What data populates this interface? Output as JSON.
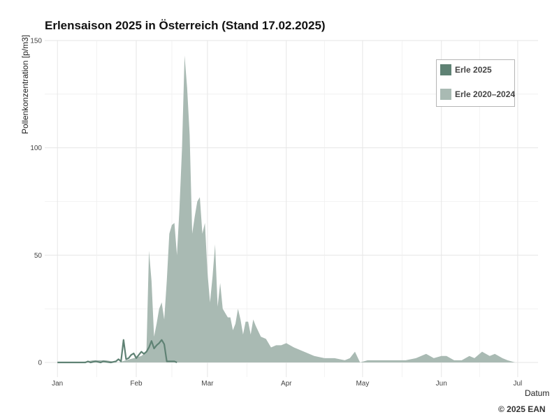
{
  "title": "Erlensaison 2025 in Österreich (Stand 17.02.2025)",
  "copyright": "© 2025 EAN",
  "colors": {
    "erle2025": "#5f8274",
    "erle2020_2024": "#a9bab3",
    "grid": "#e6e6e6"
  },
  "chart_data": {
    "type": "area",
    "title": "Erlensaison 2025 in Österreich (Stand 17.02.2025)",
    "xlabel": "Datum",
    "ylabel": "Pollenkonzentration [p/m3]",
    "ylim": [
      0,
      150
    ],
    "yticks": [
      0,
      50,
      100,
      150
    ],
    "xticks": [
      "Jan",
      "Feb",
      "Mar",
      "Apr",
      "May",
      "Jun",
      "Jul"
    ],
    "xtick_dates": [
      "2025-01-01",
      "2025-02-01",
      "2025-03-01",
      "2025-04-01",
      "2025-05-01",
      "2025-06-01",
      "2025-07-01"
    ],
    "xlim": [
      "2024-12-27",
      "2025-07-09"
    ],
    "grid": true,
    "legend_position": "top-right",
    "legend": [
      "Erle 2025",
      "Erle 2020–2024"
    ],
    "series": [
      {
        "name": "Erle 2020–2024",
        "style": "area",
        "x": [
          "2025-01-01",
          "2025-01-10",
          "2025-01-15",
          "2025-01-20",
          "2025-01-25",
          "2025-01-28",
          "2025-01-31",
          "2025-02-03",
          "2025-02-04",
          "2025-02-05",
          "2025-02-06",
          "2025-02-07",
          "2025-02-08",
          "2025-02-09",
          "2025-02-10",
          "2025-02-11",
          "2025-02-12",
          "2025-02-13",
          "2025-02-14",
          "2025-02-15",
          "2025-02-16",
          "2025-02-17",
          "2025-02-18",
          "2025-02-19",
          "2025-02-20",
          "2025-02-21",
          "2025-02-22",
          "2025-02-23",
          "2025-02-24",
          "2025-02-25",
          "2025-02-26",
          "2025-02-27",
          "2025-02-28",
          "2025-03-01",
          "2025-03-02",
          "2025-03-03",
          "2025-03-04",
          "2025-03-05",
          "2025-03-06",
          "2025-03-07",
          "2025-03-08",
          "2025-03-09",
          "2025-03-10",
          "2025-03-11",
          "2025-03-12",
          "2025-03-13",
          "2025-03-14",
          "2025-03-15",
          "2025-03-16",
          "2025-03-17",
          "2025-03-18",
          "2025-03-19",
          "2025-03-20",
          "2025-03-22",
          "2025-03-24",
          "2025-03-26",
          "2025-03-28",
          "2025-03-30",
          "2025-04-01",
          "2025-04-04",
          "2025-04-08",
          "2025-04-12",
          "2025-04-16",
          "2025-04-20",
          "2025-04-24",
          "2025-04-26",
          "2025-04-28",
          "2025-04-30",
          "2025-05-03",
          "2025-05-08",
          "2025-05-14",
          "2025-05-18",
          "2025-05-22",
          "2025-05-26",
          "2025-05-29",
          "2025-06-01",
          "2025-06-03",
          "2025-06-06",
          "2025-06-09",
          "2025-06-12",
          "2025-06-14",
          "2025-06-17",
          "2025-06-20",
          "2025-06-22",
          "2025-06-25",
          "2025-06-27",
          "2025-06-30",
          "2025-07-03"
        ],
        "values": [
          0,
          0,
          1,
          1,
          0,
          1,
          2,
          3,
          4,
          5,
          52,
          38,
          12,
          18,
          25,
          28,
          20,
          38,
          60,
          64,
          65,
          50,
          72,
          100,
          143,
          128,
          106,
          60,
          68,
          75,
          77,
          60,
          65,
          42,
          28,
          40,
          55,
          26,
          37,
          25,
          23,
          21,
          21,
          15,
          18,
          25,
          20,
          13,
          19,
          19,
          13,
          20,
          17,
          12,
          11,
          7,
          8,
          8,
          9,
          7,
          5,
          3,
          2,
          2,
          1,
          2,
          5,
          0,
          1,
          1,
          1,
          1,
          2,
          4,
          2,
          3,
          3,
          1,
          1,
          3,
          2,
          5,
          3,
          4,
          2,
          1,
          0,
          0
        ]
      },
      {
        "name": "Erle 2025",
        "style": "line",
        "x": [
          "2025-01-01",
          "2025-01-04",
          "2025-01-07",
          "2025-01-10",
          "2025-01-11",
          "2025-01-12",
          "2025-01-13",
          "2025-01-14",
          "2025-01-16",
          "2025-01-18",
          "2025-01-19",
          "2025-01-20",
          "2025-01-22",
          "2025-01-24",
          "2025-01-25",
          "2025-01-26",
          "2025-01-27",
          "2025-01-28",
          "2025-01-29",
          "2025-01-30",
          "2025-01-31",
          "2025-02-01",
          "2025-02-02",
          "2025-02-03",
          "2025-02-04",
          "2025-02-05",
          "2025-02-06",
          "2025-02-07",
          "2025-02-08",
          "2025-02-09",
          "2025-02-10",
          "2025-02-11",
          "2025-02-12",
          "2025-02-13",
          "2025-02-14",
          "2025-02-15",
          "2025-02-16",
          "2025-02-17"
        ],
        "values": [
          0,
          0,
          0,
          0,
          0,
          0,
          0.5,
          0,
          0.5,
          0,
          0.5,
          0.3,
          0,
          0.5,
          1.5,
          0.5,
          10.5,
          1.5,
          2,
          3.5,
          4.2,
          2,
          3.5,
          5,
          4,
          5,
          7,
          10,
          6.5,
          8,
          9,
          10.5,
          8.5,
          0.5,
          0.5,
          0.5,
          0.5,
          0
        ]
      }
    ]
  }
}
